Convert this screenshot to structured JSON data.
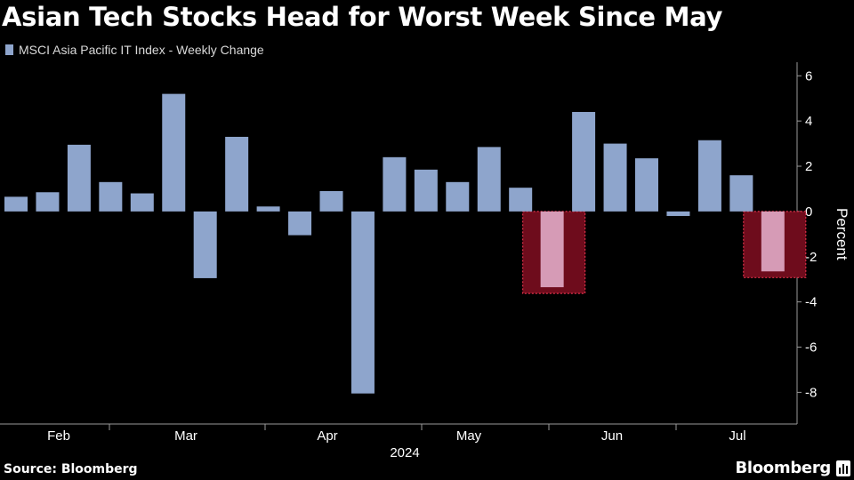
{
  "chart_data": {
    "type": "bar",
    "title": "Asian Tech Stocks Head for Worst Week Since May",
    "series": [
      {
        "name": "MSCI Asia Pacific IT Index - Weekly Change",
        "values": [
          0.65,
          0.85,
          2.95,
          1.3,
          0.8,
          5.2,
          -2.95,
          3.3,
          0.22,
          -1.05,
          0.9,
          -8.05,
          2.4,
          1.85,
          1.3,
          2.85,
          1.05,
          -3.35,
          4.4,
          3.0,
          2.35,
          -0.2,
          3.15,
          1.6,
          -2.65
        ]
      }
    ],
    "highlighted_indices": [
      17,
      24
    ],
    "x_tick_labels": [
      "Feb",
      "Mar",
      "Apr",
      "May",
      "Jun",
      "Jul"
    ],
    "x_sublabel": "2024",
    "ylabel": "Percent",
    "yticks": [
      6,
      4,
      2,
      0,
      -2,
      -4,
      -6,
      -8
    ],
    "ylim": [
      -9.4,
      6.6
    ],
    "colors": {
      "bar": "#8ea5cc",
      "highlight_bar": "#d69bb6",
      "highlight_box": "#6e0c1c",
      "highlight_border": "#e0304a",
      "axis": "#9a9a9a"
    }
  },
  "source": "Source: Bloomberg",
  "brand": "Bloomberg"
}
